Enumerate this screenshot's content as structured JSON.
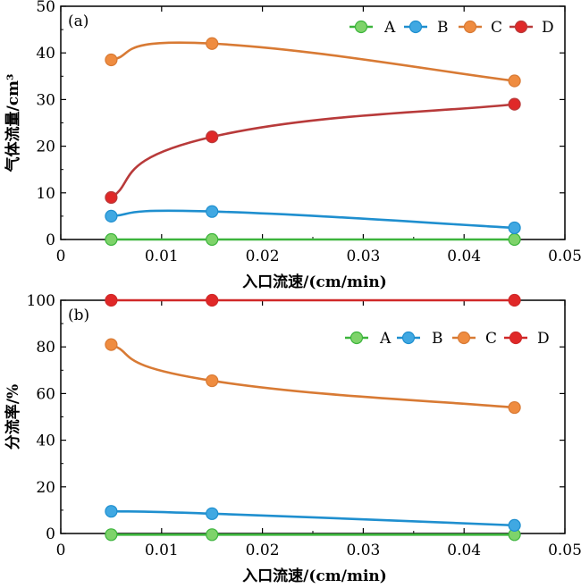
{
  "chart_data": [
    {
      "type": "line",
      "panel_label": "(a)",
      "xlabel": "入口流速/(cm/min)",
      "ylabel": "气体流量/cm³",
      "xlim": [
        0,
        0.05
      ],
      "ylim": [
        0,
        50
      ],
      "xticks": [
        0,
        0.01,
        0.02,
        0.03,
        0.04,
        0.05
      ],
      "xtick_labels": [
        "0",
        "0.01",
        "0.02",
        "0.03",
        "0.04",
        "0.05"
      ],
      "yticks": [
        0,
        10,
        20,
        30,
        40,
        50
      ],
      "ytick_labels": [
        "0",
        "10",
        "20",
        "30",
        "40",
        "50"
      ],
      "legend_position": "top-right",
      "grid": false,
      "smooth": true,
      "x": [
        0.005,
        0.015,
        0.045
      ],
      "series": [
        {
          "name": "A",
          "values": [
            0,
            0,
            0
          ],
          "color": "#3cb43c",
          "marker_fill": "#7ed36a"
        },
        {
          "name": "B",
          "values": [
            5,
            6,
            2.5
          ],
          "color": "#1f8fcf",
          "marker_fill": "#40a8e2"
        },
        {
          "name": "C",
          "values": [
            38.5,
            42,
            34
          ],
          "color": "#d87a34",
          "marker_fill": "#ef8c40"
        },
        {
          "name": "D",
          "values": [
            9,
            22,
            29
          ],
          "color": "#b83a3a",
          "marker_fill": "#e02828"
        }
      ]
    },
    {
      "type": "line",
      "panel_label": "(b)",
      "xlabel": "入口流速/(cm/min)",
      "ylabel": "分流率/%",
      "xlim": [
        0,
        0.05
      ],
      "ylim": [
        0,
        100
      ],
      "xticks": [
        0,
        0.01,
        0.02,
        0.03,
        0.04,
        0.05
      ],
      "xtick_labels": [
        "0",
        "0.01",
        "0.02",
        "0.03",
        "0.04",
        "0.05"
      ],
      "yticks": [
        0,
        20,
        40,
        60,
        80,
        100
      ],
      "ytick_labels": [
        "0",
        "20",
        "40",
        "60",
        "80",
        "100"
      ],
      "legend_position": "top-right",
      "grid": false,
      "smooth": true,
      "x": [
        0.005,
        0.015,
        0.045
      ],
      "series": [
        {
          "name": "A",
          "values": [
            -0.5,
            -0.5,
            -0.5
          ],
          "color": "#3cb43c",
          "marker_fill": "#7ed36a"
        },
        {
          "name": "B",
          "values": [
            9.5,
            8.5,
            3.5
          ],
          "color": "#1f8fcf",
          "marker_fill": "#40a8e2"
        },
        {
          "name": "C",
          "values": [
            81,
            65.5,
            54
          ],
          "color": "#d87a34",
          "marker_fill": "#ef8c40"
        },
        {
          "name": "D",
          "values": [
            100,
            100,
            100
          ],
          "color": "#d02828",
          "marker_fill": "#e02828"
        }
      ]
    }
  ]
}
